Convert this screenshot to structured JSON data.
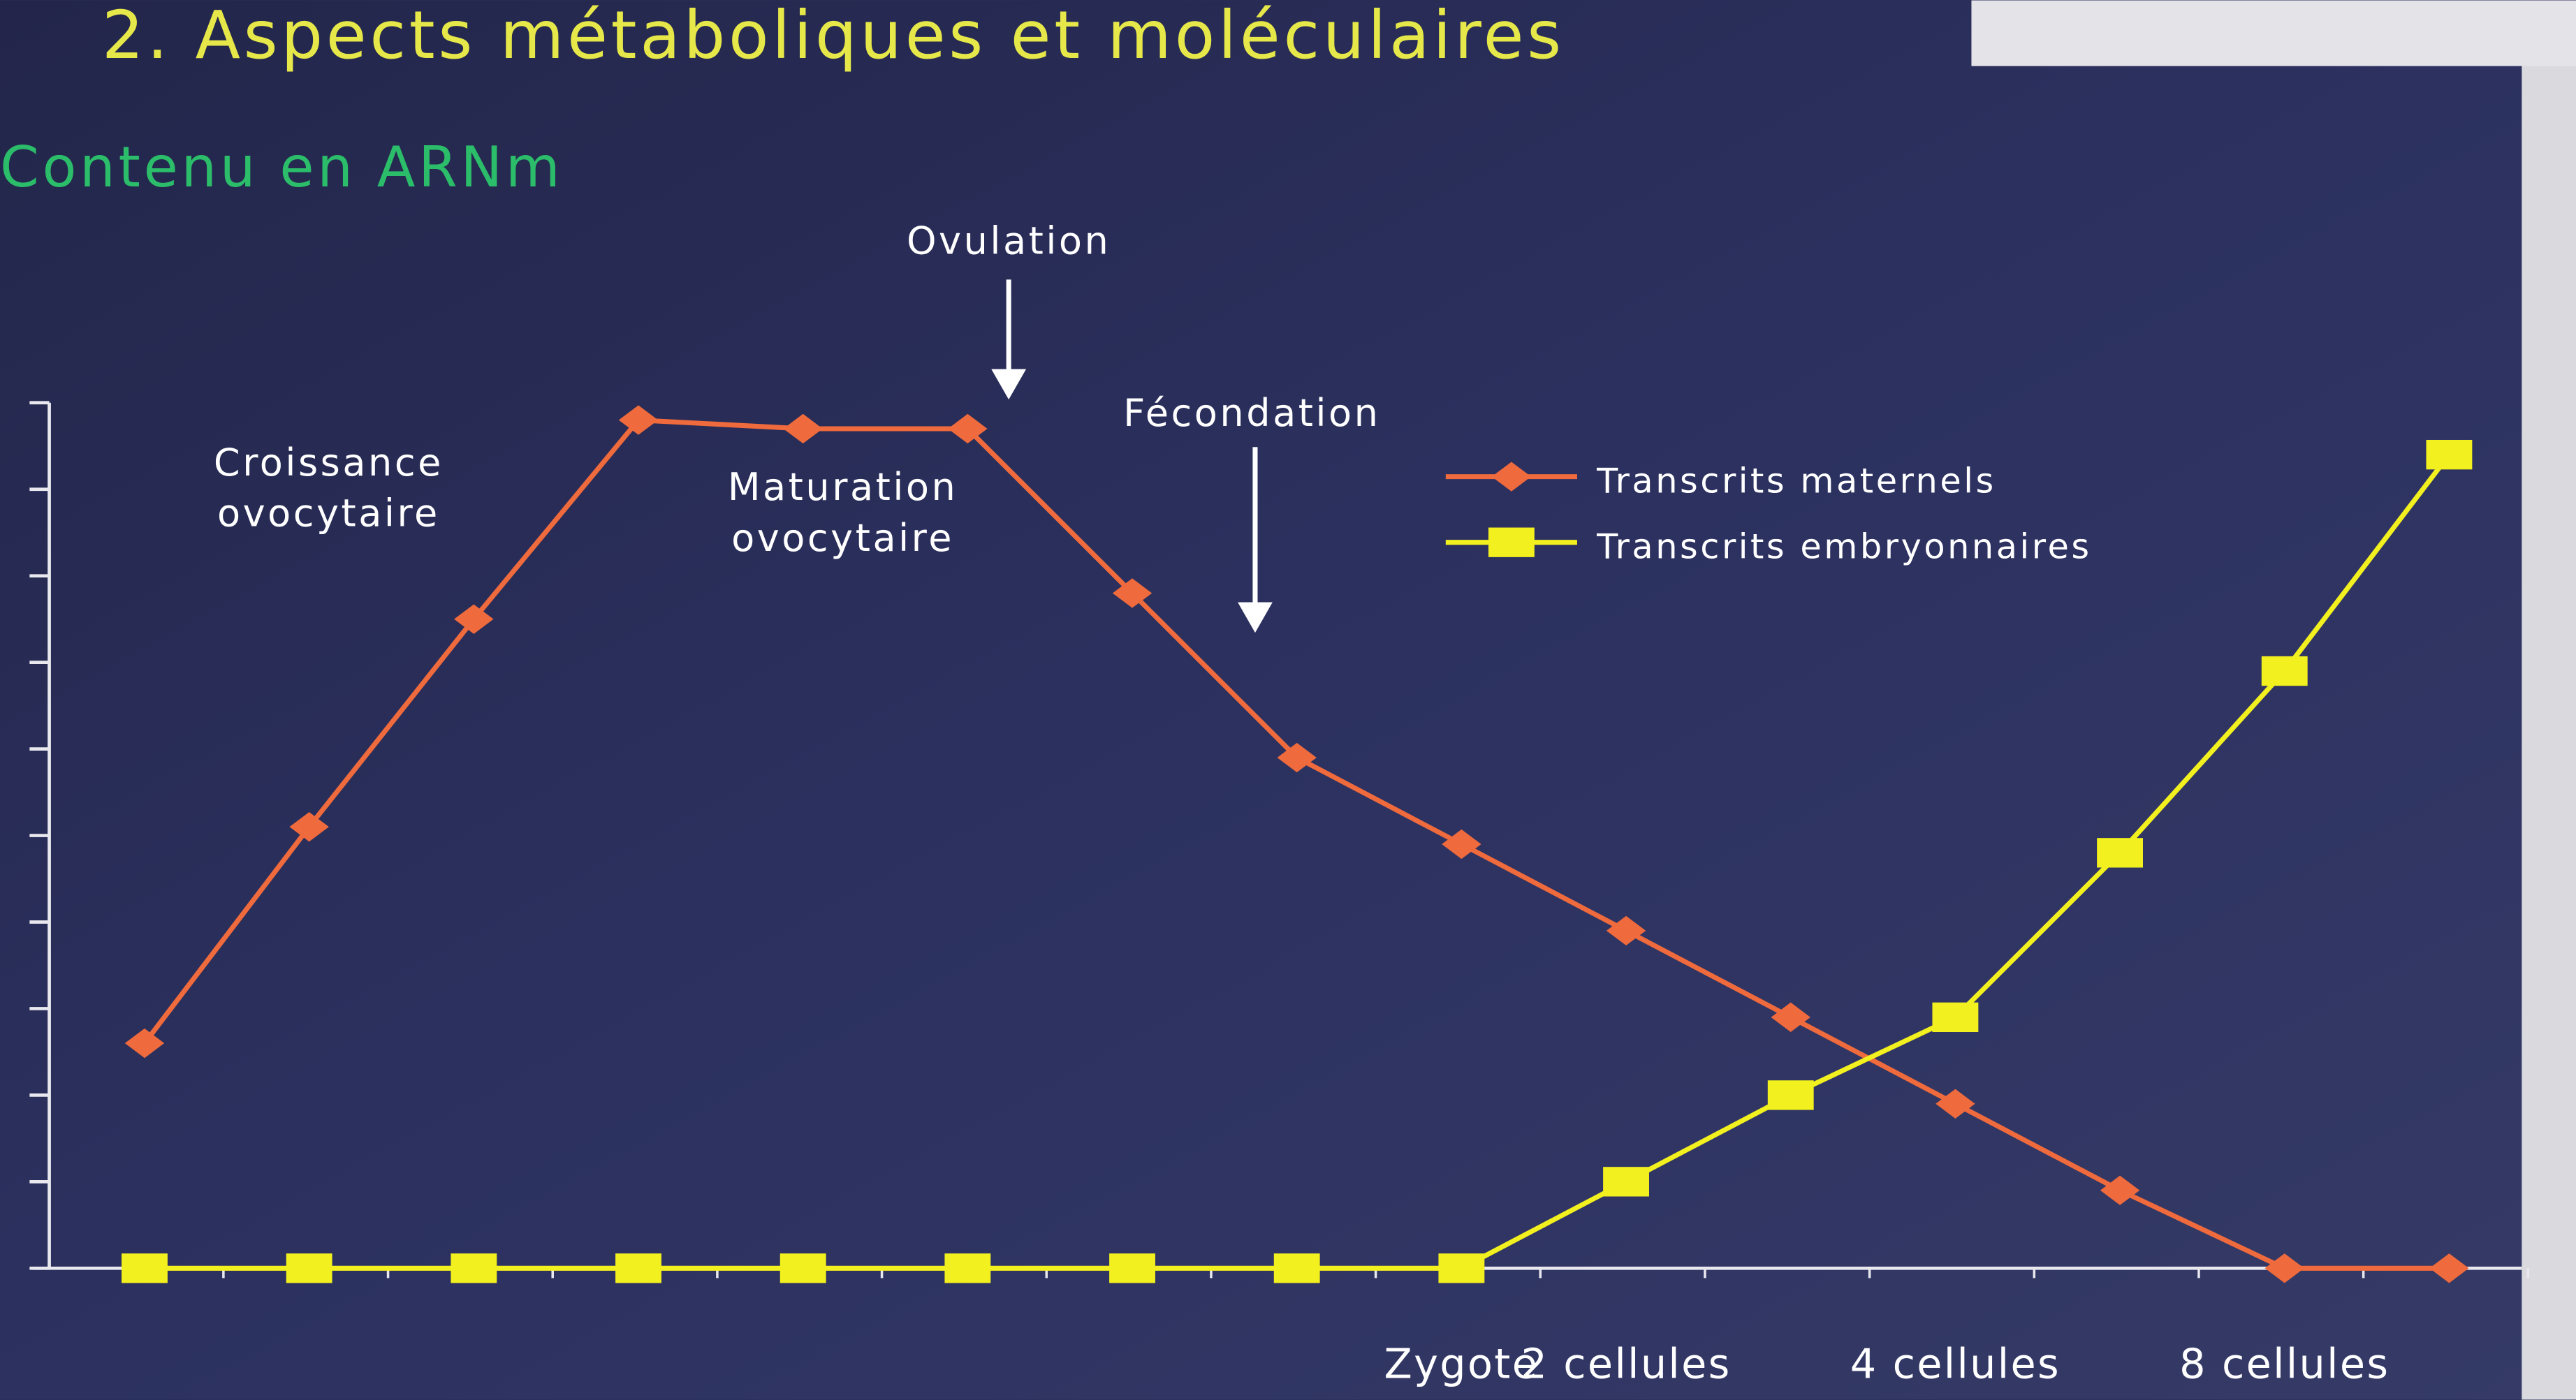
{
  "chart_data": {
    "type": "line",
    "title": "2. Aspects métaboliques et moléculaires",
    "subtitle": "Contenu en ARNm",
    "categories": [
      null,
      null,
      null,
      null,
      null,
      null,
      null,
      null,
      "Zygote",
      "2 cellules",
      null,
      "4 cellules",
      null,
      "8 cellules",
      null
    ],
    "series": [
      {
        "name": "Transcrits maternels",
        "color": "#ef6a3c",
        "marker": "diamond",
        "values": [
          2.6,
          5.1,
          7.5,
          9.8,
          9.7,
          9.7,
          7.8,
          5.9,
          4.9,
          3.9,
          2.9,
          1.9,
          0.9,
          0,
          0
        ]
      },
      {
        "name": "Transcrits embryonnaires",
        "color": "#f2f01e",
        "marker": "square",
        "values": [
          0,
          0,
          0,
          0,
          0,
          0,
          0,
          0,
          0,
          1.0,
          2.0,
          2.9,
          4.8,
          6.9,
          9.4
        ]
      }
    ],
    "ylim": [
      0,
      10
    ],
    "yticks": [
      0,
      1,
      2,
      3,
      4,
      5,
      6,
      7,
      8,
      9,
      10
    ],
    "annotations": [
      [
        "Ovulation"
      ],
      [
        "Fécondation"
      ],
      [
        "Croissance",
        "ovocytaire"
      ],
      [
        "Maturation",
        "ovocytaire"
      ]
    ],
    "legend": "upper-right"
  }
}
